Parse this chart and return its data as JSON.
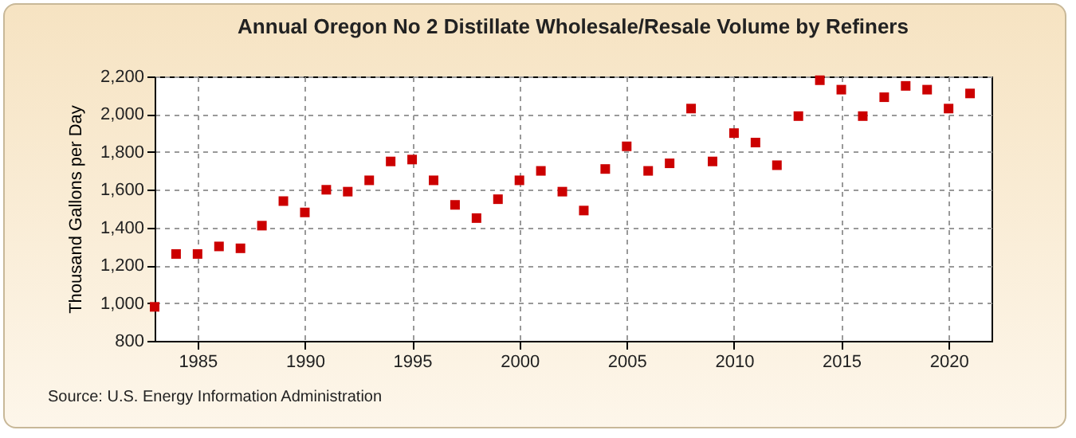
{
  "chart_data": {
    "type": "scatter",
    "title": "Annual Oregon No 2 Distillate Wholesale/Resale Volume by Refiners",
    "ylabel": "Thousand Gallons per Day",
    "annotations": [
      "Source: U.S. Energy Information Administration"
    ],
    "x": [
      1983,
      1984,
      1985,
      1986,
      1987,
      1988,
      1989,
      1990,
      1991,
      1992,
      1993,
      1994,
      1995,
      1996,
      1997,
      1998,
      1999,
      2000,
      2001,
      2002,
      2003,
      2004,
      2005,
      2006,
      2007,
      2008,
      2009,
      2010,
      2011,
      2012,
      2013,
      2014,
      2015,
      2016,
      2017,
      2018,
      2019,
      2020,
      2021
    ],
    "series": [
      {
        "color": "#cc0000",
        "values": [
          980,
          1260,
          1260,
          1300,
          1290,
          1410,
          1540,
          1480,
          1600,
          1590,
          1650,
          1750,
          1760,
          1650,
          1520,
          1450,
          1550,
          1650,
          1700,
          1590,
          1490,
          1710,
          1830,
          1700,
          1740,
          2030,
          1750,
          1900,
          1850,
          1730,
          1990,
          2180,
          2130,
          1990,
          2090,
          2150,
          2130,
          2030,
          2110
        ]
      }
    ],
    "xlim": [
      1983,
      2022
    ],
    "xticks": [
      1985,
      1990,
      1995,
      2000,
      2005,
      2010,
      2015,
      2020
    ],
    "ylim": [
      800,
      2200
    ],
    "yticks": [
      {
        "value": 800,
        "label": "800"
      },
      {
        "value": 1000,
        "label": "1,000"
      },
      {
        "value": 1200,
        "label": "1,200"
      },
      {
        "value": 1400,
        "label": "1,400"
      },
      {
        "value": 1600,
        "label": "1,600"
      },
      {
        "value": 1800,
        "label": "1,800"
      },
      {
        "value": 2000,
        "label": "2,000"
      },
      {
        "value": 2200,
        "label": "2,200"
      }
    ],
    "grid": true,
    "marker": "square"
  }
}
